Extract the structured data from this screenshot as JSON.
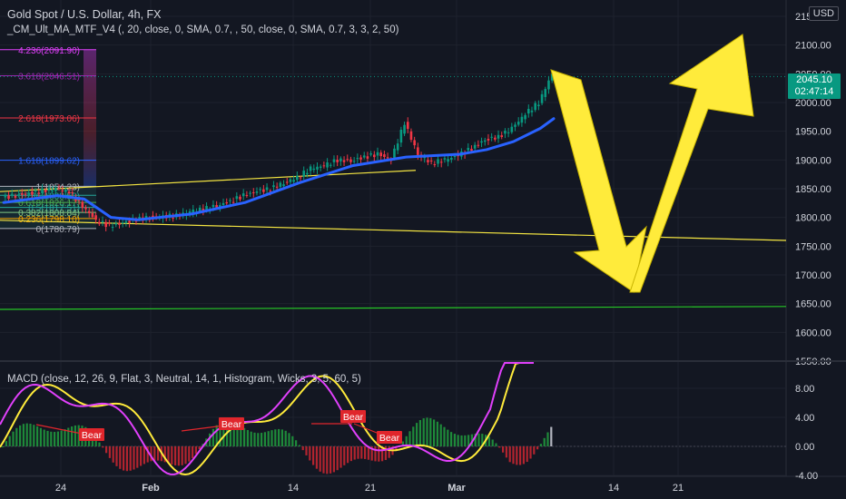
{
  "header": {
    "title": "Gold Spot / U.S. Dollar, 4h, FX",
    "indicator": "_CM_Ult_MA_MTF_V4 (, 20, close, 0, SMA, 0.7, , 50, close, 0, SMA, 0.7, 3, 3, 2, 50)",
    "currency": "USD"
  },
  "price_tag": {
    "price": "2045.10",
    "countdown": "02:47:14",
    "color": "#089981"
  },
  "macd_panel": {
    "label": "MACD (close, 12, 26, 9, Flat, 3, Neutral, 14, 1, Histogram, Wicks, 3, 5, 60, 5)"
  },
  "colors": {
    "background": "#131722",
    "grid": "#1e222d",
    "text": "#d1d4dc",
    "up": "#089981",
    "down": "#f23645",
    "ma": "#2962ff",
    "arrow": "#ffeb3b",
    "trendline": "#f5e642",
    "support": "#26c626",
    "macd": "#e040fb",
    "signal": "#ffeb3b",
    "bear": "#e0262c"
  },
  "chart_data": [
    {
      "type": "candlestick",
      "title": "Gold Spot / U.S. Dollar, 4h, FX",
      "x_ticks": [
        "24",
        "Feb",
        "14",
        "21",
        "Mar",
        "14",
        "21"
      ],
      "y_ticks": [
        "1550.00",
        "1600.00",
        "1650.00",
        "1700.00",
        "1750.00",
        "1800.00",
        "1850.00",
        "1900.00",
        "1950.00",
        "2000.00",
        "2050.00",
        "2100.00",
        "2150.00"
      ],
      "ylim": [
        1545,
        2160
      ],
      "last_price": 2045.1,
      "price_path": [
        [
          0,
          1835
        ],
        [
          1,
          1838
        ],
        [
          2,
          1842
        ],
        [
          3,
          1846
        ],
        [
          4,
          1850
        ],
        [
          5,
          1845
        ],
        [
          6,
          1820
        ],
        [
          7,
          1795
        ],
        [
          8,
          1785
        ],
        [
          9,
          1790
        ],
        [
          10,
          1796
        ],
        [
          11,
          1800
        ],
        [
          12,
          1802
        ],
        [
          13,
          1803
        ],
        [
          14,
          1810
        ],
        [
          15,
          1815
        ],
        [
          16,
          1820
        ],
        [
          17,
          1828
        ],
        [
          18,
          1838
        ],
        [
          19,
          1845
        ],
        [
          20,
          1850
        ],
        [
          21,
          1860
        ],
        [
          22,
          1870
        ],
        [
          23,
          1885
        ],
        [
          24,
          1890
        ],
        [
          25,
          1900
        ],
        [
          26,
          1898
        ],
        [
          27,
          1905
        ],
        [
          28,
          1910
        ],
        [
          29,
          1900
        ],
        [
          30,
          1965
        ],
        [
          31,
          1910
        ],
        [
          32,
          1895
        ],
        [
          33,
          1900
        ],
        [
          34,
          1908
        ],
        [
          35,
          1920
        ],
        [
          36,
          1935
        ],
        [
          37,
          1940
        ],
        [
          38,
          1955
        ],
        [
          39,
          1980
        ],
        [
          40,
          2000
        ],
        [
          41,
          2050
        ]
      ],
      "moving_average": [
        [
          0,
          1826
        ],
        [
          4,
          1838
        ],
        [
          6,
          1832
        ],
        [
          8,
          1800
        ],
        [
          10,
          1796
        ],
        [
          14,
          1806
        ],
        [
          18,
          1826
        ],
        [
          22,
          1860
        ],
        [
          26,
          1890
        ],
        [
          30,
          1905
        ],
        [
          34,
          1910
        ],
        [
          36,
          1918
        ],
        [
          38,
          1932
        ],
        [
          40,
          1955
        ],
        [
          41,
          1972
        ]
      ],
      "fibonacci_levels": [
        {
          "ratio": "4.236",
          "price": "2091.90",
          "color": "#e040fb"
        },
        {
          "ratio": "3.618",
          "price": "2046.51",
          "color": "#9c27b0"
        },
        {
          "ratio": "2.618",
          "price": "1973.06",
          "color": "#f23645"
        },
        {
          "ratio": "1.618",
          "price": "1899.62",
          "color": "#2962ff"
        },
        {
          "ratio": "1",
          "price": "1854.23",
          "color": "#b2b5be"
        },
        {
          "ratio": "0.786",
          "price": "1838.50",
          "color": "#26a69a"
        },
        {
          "ratio": "0.618",
          "price": "1826.17",
          "color": "#4caf50"
        },
        {
          "ratio": "0.5",
          "price": "1817.51",
          "color": "#26a69a"
        },
        {
          "ratio": "0.382",
          "price": "1808.84",
          "color": "#81c784"
        },
        {
          "ratio": "0.236",
          "price": "1798.10",
          "color": "#f7a600"
        },
        {
          "ratio": "0",
          "price": "1780.79",
          "color": "#b2b5be"
        }
      ],
      "trendlines": [
        {
          "name": "upper-trend",
          "from": [
            0,
            1845
          ],
          "to": [
            35,
            1885
          ]
        },
        {
          "name": "lower-trend",
          "from": [
            0,
            1795
          ],
          "to": [
            70,
            1760
          ]
        },
        {
          "name": "support-line",
          "from": [
            0,
            1640
          ],
          "to": [
            70,
            1645
          ]
        }
      ],
      "annotation_arrows": "yellow zig-zag: drop from 2050 to ~1680, then rise toward ~2150"
    },
    {
      "type": "macd",
      "y_ticks": [
        "8.00",
        "4.00",
        "0.00",
        "-4.00"
      ],
      "ylim": [
        -4.5,
        11
      ],
      "bear_labels": [
        {
          "text": "Bear",
          "x": 6.2,
          "y": 1.2
        },
        {
          "text": "Bear",
          "x": 15.5,
          "y": 2.6
        },
        {
          "text": "Bear",
          "x": 24.2,
          "y": 3.6
        },
        {
          "text": "Bear",
          "x": 27.5,
          "y": 1.0
        }
      ],
      "histogram_note": "green above zero, red below, grey final bars"
    }
  ]
}
